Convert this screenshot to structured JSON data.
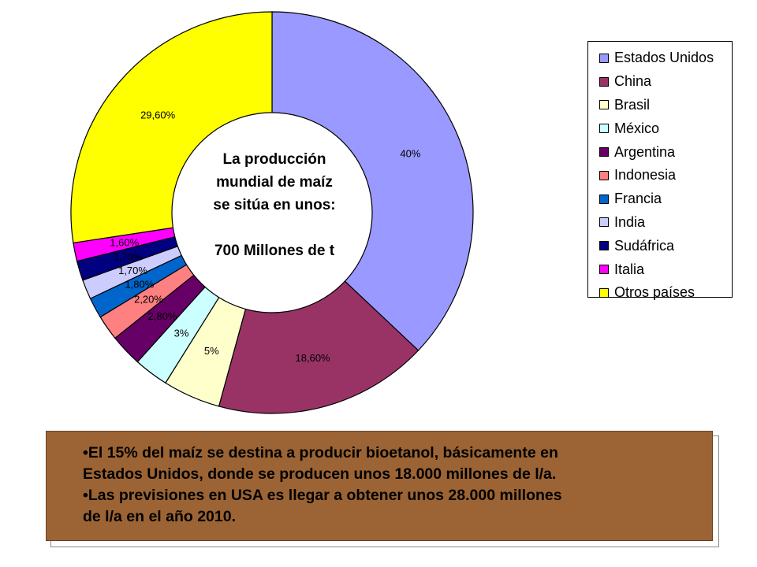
{
  "chart_data": {
    "type": "pie",
    "style": "donut",
    "categories": [
      "Estados Unidos",
      "China",
      "Brasil",
      "México",
      "Argentina",
      "Indonesia",
      "Francia",
      "India",
      "Sudáfrica",
      "Italia",
      "Otros países"
    ],
    "values": [
      40,
      18.6,
      5,
      3,
      2.8,
      2.2,
      1.8,
      1.7,
      1.7,
      1.6,
      29.6
    ],
    "data_labels": [
      "40%",
      "18,60%",
      "5%",
      "3%",
      "2,80%",
      "2,20%",
      "1,80%",
      "1,70%",
      "1,70%",
      "1,60%",
      "29,60%"
    ],
    "colors": [
      "#9999ff",
      "#993366",
      "#ffffcc",
      "#ccffff",
      "#660066",
      "#ff8080",
      "#0066cc",
      "#ccccff",
      "#000080",
      "#ff00ff",
      "#ffff00"
    ],
    "legend_position": "right",
    "center_text": [
      "La producción",
      "mundial de maíz",
      "se sitúa en unos:",
      "",
      "700 Millones de t"
    ]
  },
  "note": {
    "lines": [
      "•El 15% del maíz se destina a producir bioetanol, básicamente en",
      "Estados Unidos, donde se producen unos 18.000 millones de l/a.",
      "•Las previsiones en USA es llegar a obtener unos 28.000 millones",
      "de l/a en el año 2010."
    ],
    "background": "#9c6434"
  }
}
